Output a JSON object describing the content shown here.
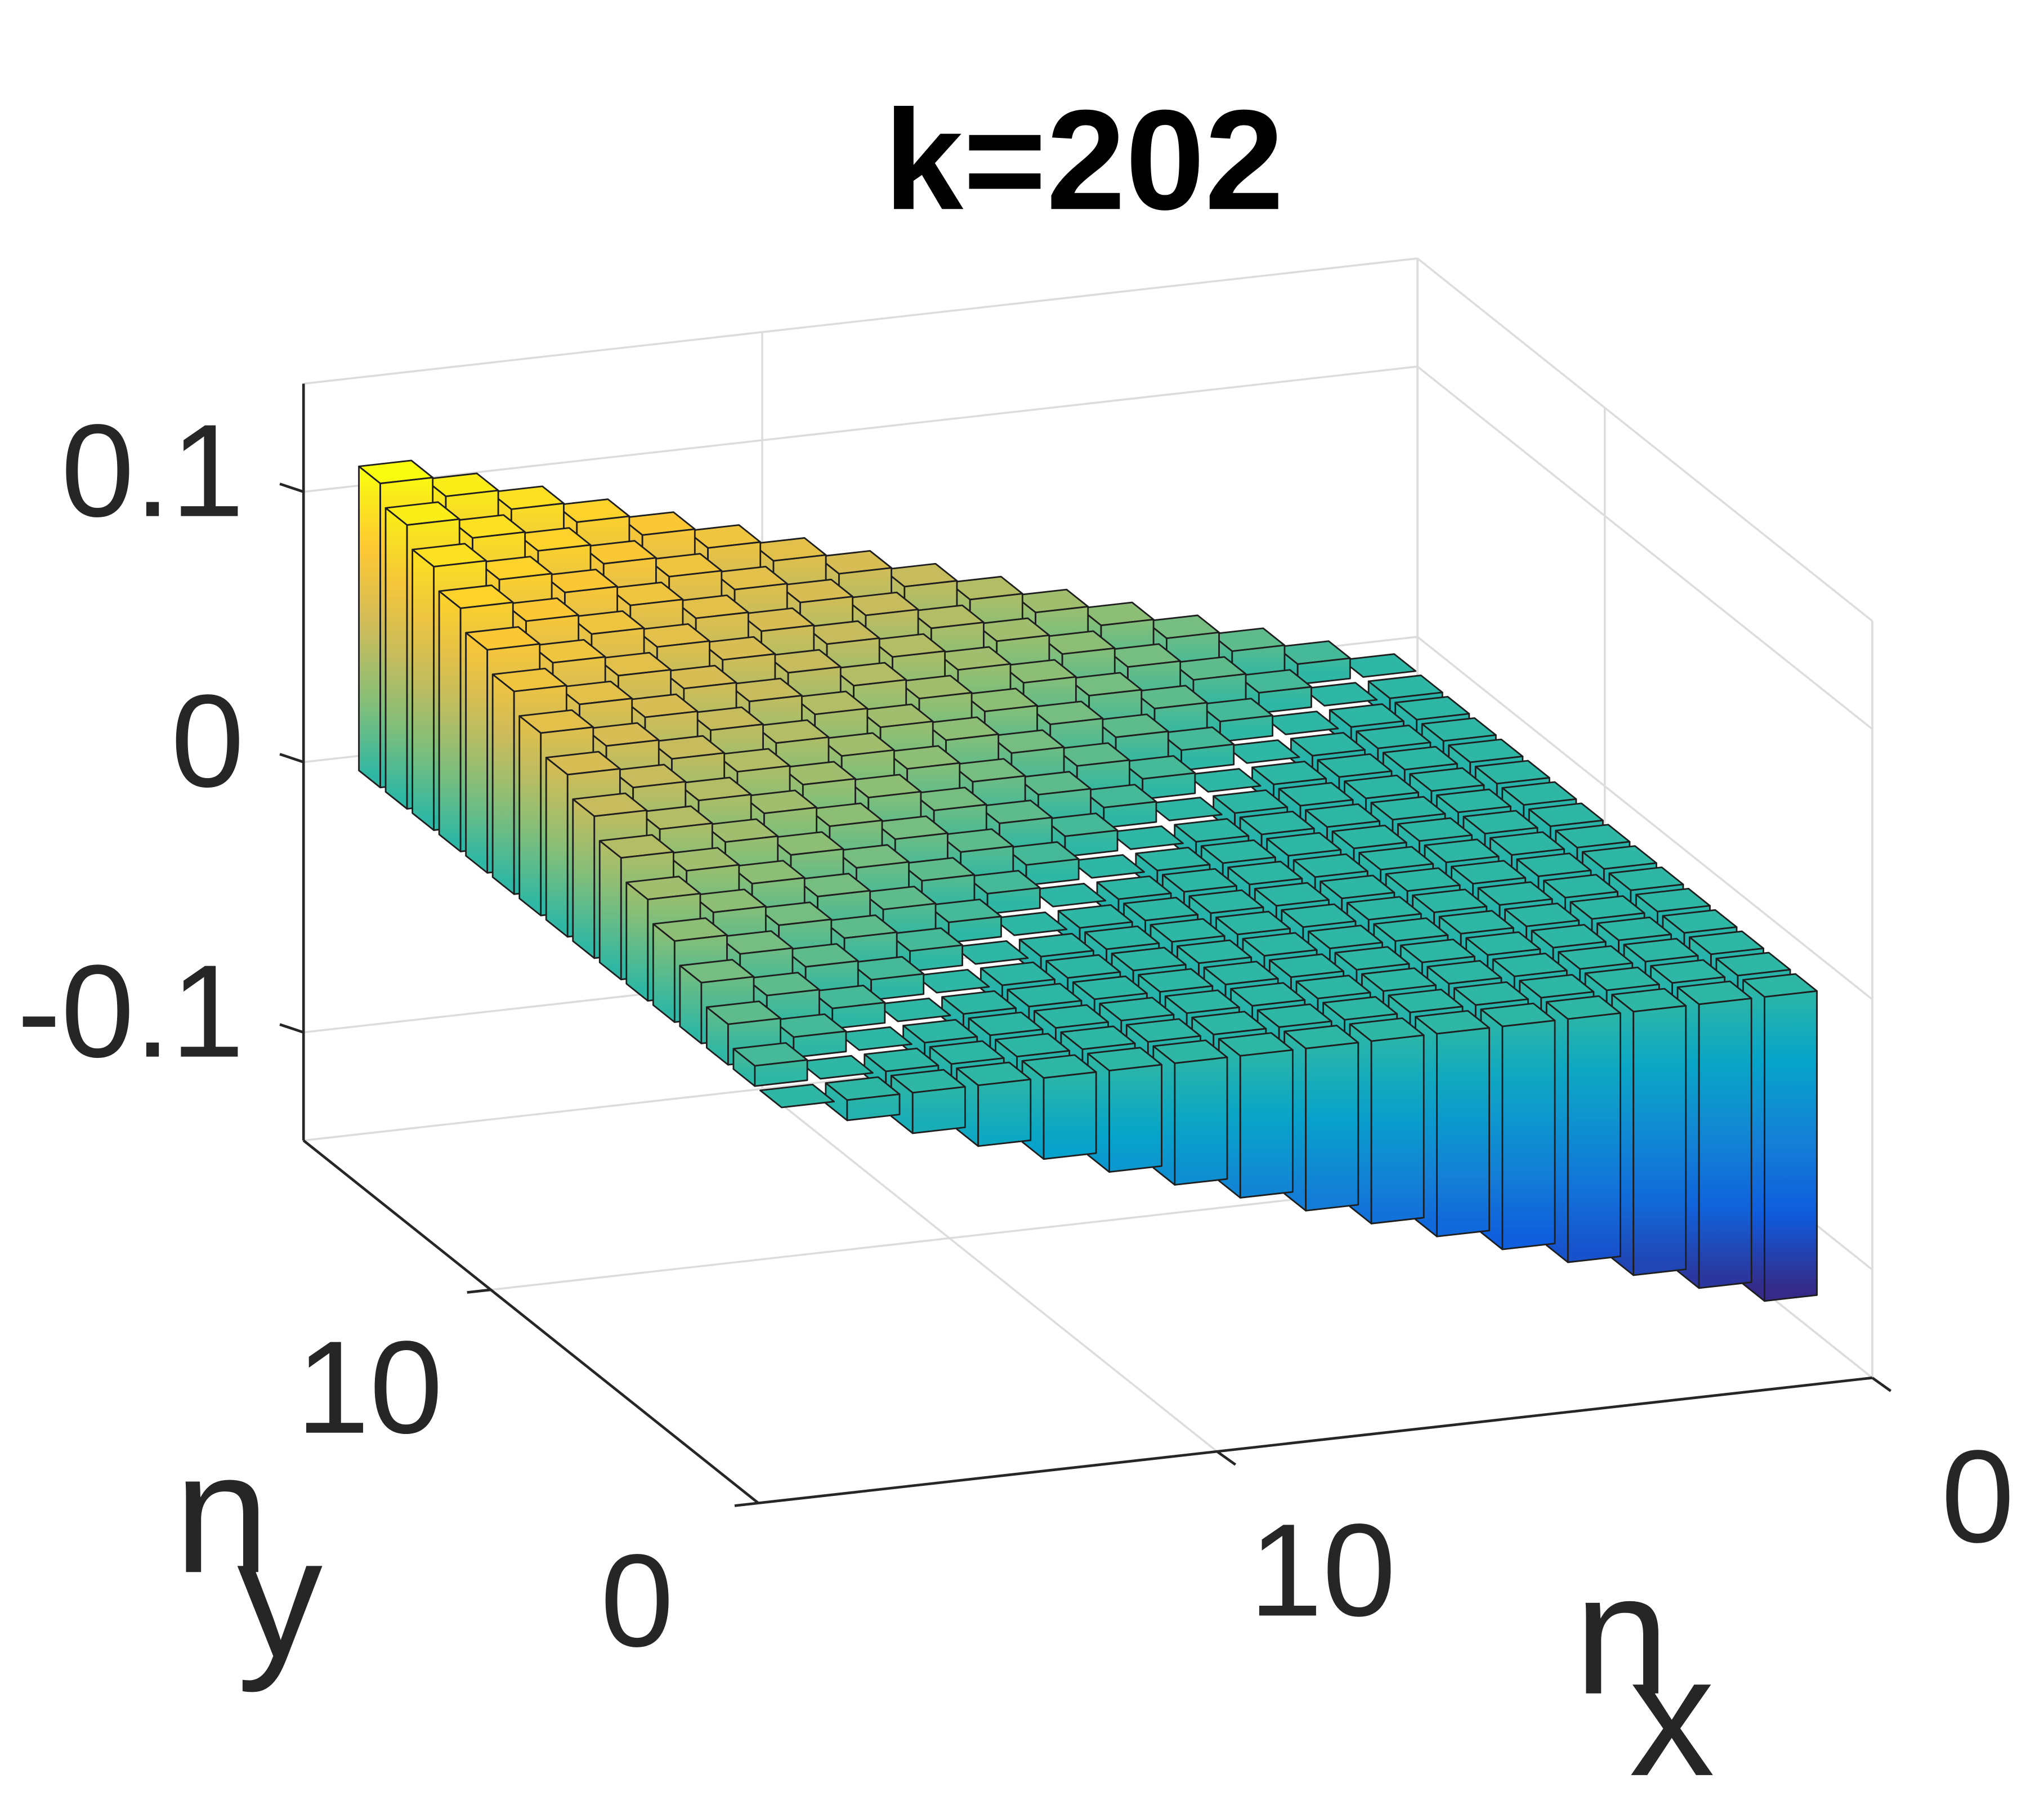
{
  "chart_data": {
    "type": "bar3",
    "title": "k=202",
    "xlabel": "n",
    "xlabel_subscript": "x",
    "ylabel": "n",
    "ylabel_subscript": "y",
    "x": [
      1,
      2,
      3,
      4,
      5,
      6,
      7,
      8,
      9,
      10,
      11,
      12,
      13,
      14,
      15,
      16
    ],
    "y": [
      1,
      2,
      3,
      4,
      5,
      6,
      7,
      8,
      9,
      10,
      11,
      12,
      13,
      14,
      15,
      16
    ],
    "z": [
      [
        -0.1125,
        -0.105,
        -0.0975,
        -0.09,
        -0.0825,
        -0.075,
        -0.0675,
        -0.06,
        -0.0525,
        -0.045,
        -0.0375,
        -0.03,
        -0.0225,
        -0.015,
        -0.0075,
        0
      ],
      [
        -0.105,
        -0.0975,
        -0.09,
        -0.0825,
        -0.075,
        -0.0675,
        -0.06,
        -0.0525,
        -0.045,
        -0.0375,
        -0.03,
        -0.0225,
        -0.015,
        -0.0075,
        0,
        0.0075
      ],
      [
        -0.0975,
        -0.09,
        -0.0825,
        -0.075,
        -0.0675,
        -0.06,
        -0.0525,
        -0.045,
        -0.0375,
        -0.03,
        -0.0225,
        -0.015,
        -0.0075,
        0,
        0.0075,
        0.015
      ],
      [
        -0.09,
        -0.0825,
        -0.075,
        -0.0675,
        -0.06,
        -0.0525,
        -0.045,
        -0.0375,
        -0.03,
        -0.0225,
        -0.015,
        -0.0075,
        0,
        0.0075,
        0.015,
        0.0225
      ],
      [
        -0.0825,
        -0.075,
        -0.0675,
        -0.06,
        -0.0525,
        -0.045,
        -0.0375,
        -0.03,
        -0.0225,
        -0.015,
        -0.0075,
        0,
        0.0075,
        0.015,
        0.0225,
        0.03
      ],
      [
        -0.075,
        -0.0675,
        -0.06,
        -0.0525,
        -0.045,
        -0.0375,
        -0.03,
        -0.0225,
        -0.015,
        -0.0075,
        0,
        0.0075,
        0.015,
        0.0225,
        0.03,
        0.0375
      ],
      [
        -0.0675,
        -0.06,
        -0.0525,
        -0.045,
        -0.0375,
        -0.03,
        -0.0225,
        -0.015,
        -0.0075,
        0,
        0.0075,
        0.015,
        0.0225,
        0.03,
        0.0375,
        0.045
      ],
      [
        -0.06,
        -0.0525,
        -0.045,
        -0.0375,
        -0.03,
        -0.0225,
        -0.015,
        -0.0075,
        0,
        0.0075,
        0.015,
        0.0225,
        0.03,
        0.0375,
        0.045,
        0.0525
      ],
      [
        -0.0525,
        -0.045,
        -0.0375,
        -0.03,
        -0.0225,
        -0.015,
        -0.0075,
        0,
        0.0075,
        0.015,
        0.0225,
        0.03,
        0.0375,
        0.045,
        0.0525,
        0.06
      ],
      [
        -0.045,
        -0.0375,
        -0.03,
        -0.0225,
        -0.015,
        -0.0075,
        0,
        0.0075,
        0.015,
        0.0225,
        0.03,
        0.0375,
        0.045,
        0.0525,
        0.06,
        0.0675
      ],
      [
        -0.0375,
        -0.03,
        -0.0225,
        -0.015,
        -0.0075,
        0,
        0.0075,
        0.015,
        0.0225,
        0.03,
        0.0375,
        0.045,
        0.0525,
        0.06,
        0.0675,
        0.075
      ],
      [
        -0.03,
        -0.0225,
        -0.015,
        -0.0075,
        0,
        0.0075,
        0.015,
        0.0225,
        0.03,
        0.0375,
        0.045,
        0.0525,
        0.06,
        0.0675,
        0.075,
        0.0825
      ],
      [
        -0.0225,
        -0.015,
        -0.0075,
        0,
        0.0075,
        0.015,
        0.0225,
        0.03,
        0.0375,
        0.045,
        0.0525,
        0.06,
        0.0675,
        0.075,
        0.0825,
        0.09
      ],
      [
        -0.015,
        -0.0075,
        0,
        0.0075,
        0.015,
        0.0225,
        0.03,
        0.0375,
        0.045,
        0.0525,
        0.06,
        0.0675,
        0.075,
        0.0825,
        0.09,
        0.0975
      ],
      [
        -0.0075,
        0,
        0.0075,
        0.015,
        0.0225,
        0.03,
        0.0375,
        0.045,
        0.0525,
        0.06,
        0.0675,
        0.075,
        0.0825,
        0.09,
        0.0975,
        0.105
      ],
      [
        0,
        0.0075,
        0.015,
        0.0225,
        0.03,
        0.0375,
        0.045,
        0.0525,
        0.06,
        0.0675,
        0.075,
        0.0825,
        0.09,
        0.0975,
        0.105,
        0.1125
      ]
    ],
    "xlim": [
      0,
      17
    ],
    "ylim": [
      0,
      17
    ],
    "zlim": [
      -0.14,
      0.14
    ],
    "xticks": [
      0,
      10
    ],
    "yticks": [
      0,
      10
    ],
    "zticks": [
      -0.1,
      0,
      0.1
    ],
    "grid": true,
    "colormap": [
      "#352a87",
      "#0f5cdd",
      "#1481d6",
      "#06a4ca",
      "#2eb7a4",
      "#87bf77",
      "#d1bb59",
      "#fec832",
      "#f9fb0e"
    ],
    "edgecolor": "#1e1e1e"
  }
}
